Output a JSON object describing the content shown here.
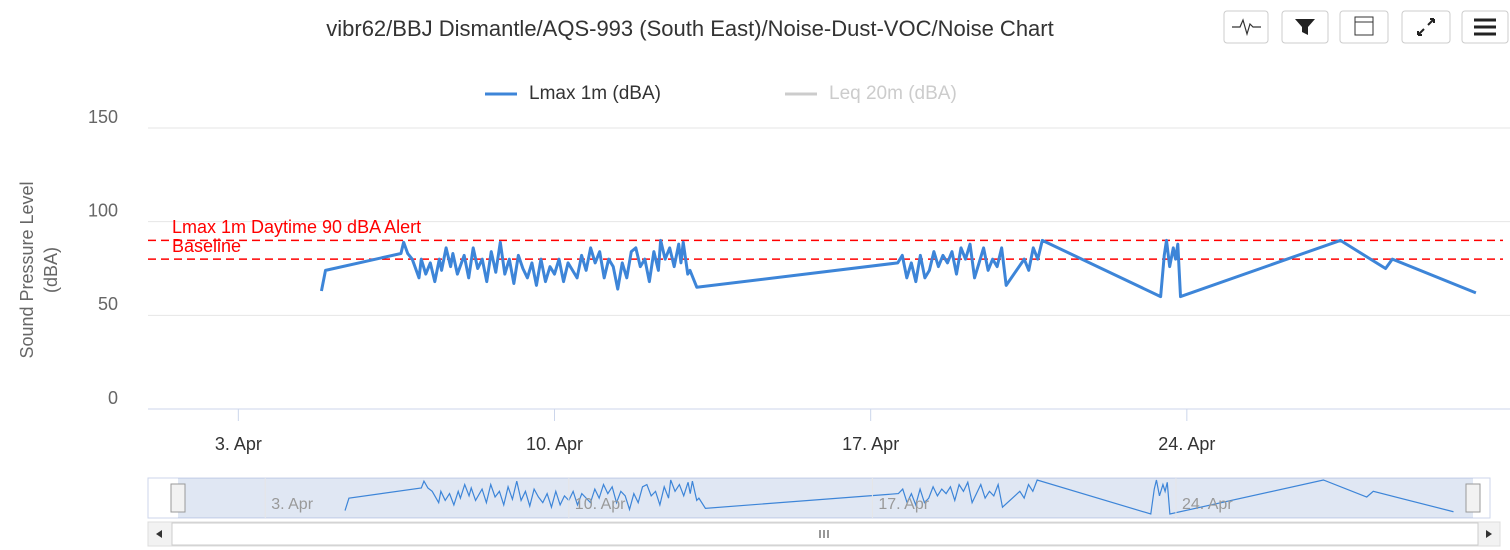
{
  "chart_data": {
    "type": "line",
    "title": "vibr62/BBJ Dismantle/AQS-993 (South East)/Noise-Dust-VOC/Noise Chart",
    "y_label_lines": [
      "Sound Pressure Level",
      "(dBA)"
    ],
    "xlim": [
      1,
      31
    ],
    "xticks": [
      {
        "value": 3,
        "label": "3. Apr"
      },
      {
        "value": 10,
        "label": "10. Apr"
      },
      {
        "value": 17,
        "label": "17. Apr"
      },
      {
        "value": 24,
        "label": "24. Apr"
      }
    ],
    "ylim": [
      0,
      150
    ],
    "yticks": [
      0,
      50,
      100,
      150
    ],
    "grid": true,
    "legend": "top",
    "plot_lines": [
      {
        "label": "Lmax 1m Daytime 90 dBA Alert",
        "value": 90,
        "color": "#ff0000"
      },
      {
        "label": "Baseline",
        "value": 80,
        "color": "#ff0000"
      }
    ],
    "series": [
      {
        "name": "Lmax 1m (dBA)",
        "color": "#3d85d8",
        "visible": true,
        "x": [
          4.84,
          4.93,
          6.6,
          6.66,
          6.75,
          6.85,
          7.0,
          7.05,
          7.15,
          7.25,
          7.35,
          7.45,
          7.5,
          7.6,
          7.7,
          7.75,
          7.85,
          8.0,
          8.1,
          8.2,
          8.3,
          8.4,
          8.5,
          8.6,
          8.7,
          8.8,
          8.9,
          9.0,
          9.1,
          9.2,
          9.3,
          9.4,
          9.5,
          9.6,
          9.7,
          9.8,
          9.9,
          10.0,
          10.1,
          10.2,
          10.3,
          10.5,
          10.6,
          10.7,
          10.8,
          10.9,
          11.0,
          11.1,
          11.2,
          11.3,
          11.4,
          11.5,
          11.6,
          11.7,
          11.8,
          11.9,
          12.0,
          12.1,
          12.2,
          12.3,
          12.35,
          12.45,
          12.55,
          12.65,
          12.75,
          12.8,
          12.85,
          12.95,
          13.0,
          13.15,
          17.6,
          17.7,
          17.8,
          17.9,
          18.0,
          18.1,
          18.2,
          18.3,
          18.4,
          18.5,
          18.6,
          18.7,
          18.8,
          18.9,
          19.0,
          19.1,
          19.2,
          19.3,
          19.4,
          19.5,
          19.6,
          19.7,
          19.8,
          19.9,
          20.0,
          20.4,
          20.5,
          20.6,
          20.7,
          20.8,
          23.42,
          23.5,
          23.55,
          23.62,
          23.7,
          23.75,
          23.8,
          23.86,
          27.4,
          28.4,
          28.55,
          30.4
        ],
        "values": [
          63,
          74,
          83,
          89,
          83,
          80,
          70,
          80,
          72,
          78,
          68,
          80,
          74,
          86,
          76,
          83,
          72,
          82,
          70,
          86,
          75,
          80,
          68,
          84,
          73,
          89,
          72,
          80,
          67,
          82,
          75,
          70,
          78,
          66,
          80,
          68,
          76,
          72,
          80,
          68,
          78,
          70,
          82,
          74,
          86,
          78,
          84,
          70,
          80,
          76,
          64,
          78,
          70,
          84,
          86,
          76,
          80,
          68,
          84,
          74,
          90,
          80,
          86,
          76,
          88,
          78,
          89,
          72,
          74,
          65,
          78,
          82,
          70,
          78,
          68,
          82,
          70,
          74,
          84,
          76,
          82,
          78,
          84,
          72,
          86,
          80,
          88,
          70,
          78,
          86,
          74,
          80,
          76,
          86,
          66,
          80,
          74,
          86,
          80,
          90,
          60,
          82,
          90,
          76,
          86,
          80,
          88,
          60,
          90,
          75,
          80,
          62
        ]
      },
      {
        "name": "Leq 20m (dBA)",
        "color": "#cccccc",
        "visible": false,
        "x": [],
        "values": []
      }
    ]
  }
}
